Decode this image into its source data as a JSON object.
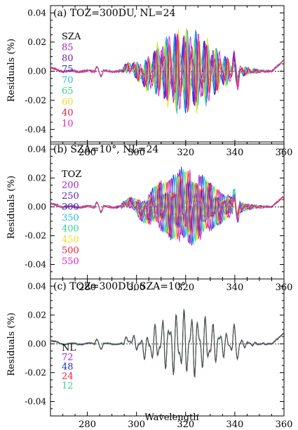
{
  "figure": {
    "xlabel": "Wavelength",
    "ylabel": "Residuals (%)"
  },
  "chart_data": [
    {
      "type": "line",
      "title": "(a) TOZ=300DU, NL=24",
      "xlabel": "",
      "ylabel": "Residuals (%)",
      "xlim": [
        265,
        360
      ],
      "ylim": [
        -0.05,
        0.045
      ],
      "xticks": [
        280,
        300,
        320,
        340,
        360
      ],
      "yticks": [
        0.04,
        0.02,
        0.0,
        -0.02,
        -0.04
      ],
      "ytick_labels": [
        "0.04",
        "0.02",
        "0.00",
        "-0.02",
        "-0.04"
      ],
      "zero_line": true,
      "legend_title": "SZA",
      "legend_position": "left",
      "series": [
        {
          "name": "85",
          "color": "#a020c0",
          "amp": 0.026
        },
        {
          "name": "80",
          "color": "#6a1fc0",
          "amp": 0.027
        },
        {
          "name": "75",
          "color": "#1c2bd6",
          "amp": 0.03
        },
        {
          "name": "70",
          "color": "#22b8e0",
          "amp": 0.031
        },
        {
          "name": "65",
          "color": "#2bd68a",
          "amp": 0.029
        },
        {
          "name": "60",
          "color": "#e8e020",
          "amp": 0.032
        },
        {
          "name": "40",
          "color": "#e8203a",
          "amp": 0.026
        },
        {
          "name": "10",
          "color": "#e020c0",
          "amp": 0.03
        }
      ]
    },
    {
      "type": "line",
      "title": "(b) SZA=10°, NL=24",
      "xlabel": "",
      "ylabel": "Residuals (%)",
      "xlim": [
        265,
        360
      ],
      "ylim": [
        -0.05,
        0.045
      ],
      "xticks": [
        280,
        300,
        320,
        340,
        360
      ],
      "yticks": [
        0.04,
        0.02,
        0.0,
        -0.02,
        -0.04
      ],
      "ytick_labels": [
        "0.04",
        "0.02",
        "0.00",
        "-0.02",
        "-0.04"
      ],
      "zero_line": true,
      "legend_title": "TOZ",
      "legend_position": "left",
      "series": [
        {
          "name": "200",
          "color": "#a020c0",
          "amp": 0.026
        },
        {
          "name": "250",
          "color": "#6a1fc0",
          "amp": 0.027
        },
        {
          "name": "300",
          "color": "#1c2bd6",
          "amp": 0.028
        },
        {
          "name": "350",
          "color": "#22b8e0",
          "amp": 0.027
        },
        {
          "name": "400",
          "color": "#2bd68a",
          "amp": 0.026
        },
        {
          "name": "450",
          "color": "#e8e020",
          "amp": 0.026
        },
        {
          "name": "500",
          "color": "#e8203a",
          "amp": 0.025
        },
        {
          "name": "550",
          "color": "#e020c0",
          "amp": 0.026
        }
      ]
    },
    {
      "type": "line",
      "title": "(c) TOZ=300DU, SZA=10°",
      "xlabel": "Wavelength",
      "ylabel": "Residuals (%)",
      "xlim": [
        265,
        360
      ],
      "ylim": [
        -0.05,
        0.045
      ],
      "xticks": [
        280,
        300,
        320,
        340,
        360
      ],
      "yticks": [
        0.04,
        0.02,
        0.0,
        -0.02,
        -0.04
      ],
      "ytick_labels": [
        "0.04",
        "0.02",
        "0.00",
        "-0.02",
        "-0.04"
      ],
      "zero_line": true,
      "legend_title": "NL",
      "legend_position": "bottom-left",
      "series": [
        {
          "name": "72",
          "color": "#a020c0",
          "amp": 0.025
        },
        {
          "name": "48",
          "color": "#1c2bd6",
          "amp": 0.025
        },
        {
          "name": "24",
          "color": "#e8203a",
          "amp": 0.025
        },
        {
          "name": "12",
          "color": "#2bd68a",
          "amp": 0.025
        }
      ]
    }
  ]
}
